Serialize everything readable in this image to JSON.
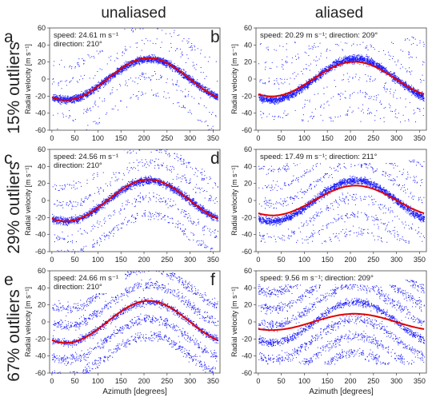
{
  "column_headers": [
    "unaliased",
    "aliased"
  ],
  "row_headers": [
    "15% outliers",
    "29% outliers",
    "67% outliers"
  ],
  "colors": {
    "points": "#1a1aff",
    "fit": "#e00000"
  },
  "chart_data": [
    {
      "type": "scatter",
      "panel": "a",
      "row": 0,
      "col": 0,
      "annotation": [
        "speed: 24.61 m s⁻¹",
        "direction: 210°"
      ],
      "fit": {
        "speed": 24.61,
        "direction": 210
      },
      "signal": {
        "amplitude": 24,
        "phase_deg": 210
      },
      "outlier_fraction": 0.15,
      "aliased": false,
      "xlabel": "",
      "ylabel": "Radial velocity [m s⁻¹]",
      "xlim": [
        -5,
        365
      ],
      "ylim": [
        -60,
        60
      ],
      "xticks": [
        0,
        50,
        100,
        150,
        200,
        250,
        300,
        350
      ],
      "yticks": [
        -60,
        -40,
        -20,
        0,
        20,
        40,
        60
      ]
    },
    {
      "type": "scatter",
      "panel": "b",
      "row": 0,
      "col": 1,
      "annotation": [
        "speed: 20.29 m s⁻¹; direction: 209°"
      ],
      "fit": {
        "speed": 20.29,
        "direction": 209
      },
      "signal": {
        "amplitude": 24,
        "phase_deg": 210
      },
      "outlier_fraction": 0.15,
      "aliased": true,
      "xlabel": "",
      "ylabel": "Radial velocity [m s⁻¹]",
      "xlim": [
        -5,
        365
      ],
      "ylim": [
        -60,
        60
      ],
      "xticks": [
        0,
        50,
        100,
        150,
        200,
        250,
        300,
        350
      ],
      "yticks": [
        -60,
        -40,
        -20,
        0,
        20,
        40,
        60
      ]
    },
    {
      "type": "scatter",
      "panel": "c",
      "row": 1,
      "col": 0,
      "annotation": [
        "speed: 24.56 m s⁻¹",
        "direction: 210°"
      ],
      "fit": {
        "speed": 24.56,
        "direction": 210
      },
      "signal": {
        "amplitude": 24,
        "phase_deg": 210
      },
      "outlier_fraction": 0.29,
      "aliased": false,
      "xlabel": "",
      "ylabel": "Radial velocity [m s⁻¹]",
      "xlim": [
        -5,
        365
      ],
      "ylim": [
        -60,
        60
      ],
      "xticks": [
        0,
        50,
        100,
        150,
        200,
        250,
        300,
        350
      ],
      "yticks": [
        -60,
        -40,
        -20,
        0,
        20,
        40,
        60
      ]
    },
    {
      "type": "scatter",
      "panel": "d",
      "row": 1,
      "col": 1,
      "annotation": [
        "speed: 17.49 m s⁻¹; direction: 211°"
      ],
      "fit": {
        "speed": 17.49,
        "direction": 211
      },
      "signal": {
        "amplitude": 24,
        "phase_deg": 210
      },
      "outlier_fraction": 0.29,
      "aliased": true,
      "xlabel": "",
      "ylabel": "Radial velocity [m s⁻¹]",
      "xlim": [
        -5,
        365
      ],
      "ylim": [
        -60,
        60
      ],
      "xticks": [
        0,
        50,
        100,
        150,
        200,
        250,
        300,
        350
      ],
      "yticks": [
        -60,
        -40,
        -20,
        0,
        20,
        40,
        60
      ]
    },
    {
      "type": "scatter",
      "panel": "e",
      "row": 2,
      "col": 0,
      "annotation": [
        "speed: 24.66 m s⁻¹",
        "direction: 210°"
      ],
      "fit": {
        "speed": 24.66,
        "direction": 210
      },
      "signal": {
        "amplitude": 24,
        "phase_deg": 210
      },
      "outlier_fraction": 0.67,
      "aliased": false,
      "xlabel": "Azimuth [degrees]",
      "ylabel": "Radial velocity [m s⁻¹]",
      "xlim": [
        -5,
        365
      ],
      "ylim": [
        -60,
        60
      ],
      "xticks": [
        0,
        50,
        100,
        150,
        200,
        250,
        300,
        350
      ],
      "yticks": [
        -60,
        -40,
        -20,
        0,
        20,
        40,
        60
      ]
    },
    {
      "type": "scatter",
      "panel": "f",
      "row": 2,
      "col": 1,
      "annotation": [
        "speed: 9.56 m s⁻¹; direction: 209°"
      ],
      "fit": {
        "speed": 9.56,
        "direction": 209
      },
      "signal": {
        "amplitude": 24,
        "phase_deg": 210
      },
      "outlier_fraction": 0.67,
      "aliased": true,
      "xlabel": "Azimuth [degrees]",
      "ylabel": "Radial velocity [m s⁻¹]",
      "xlim": [
        -5,
        365
      ],
      "ylim": [
        -60,
        60
      ],
      "xticks": [
        0,
        50,
        100,
        150,
        200,
        250,
        300,
        350
      ],
      "yticks": [
        -60,
        -40,
        -20,
        0,
        20,
        40,
        60
      ]
    }
  ]
}
